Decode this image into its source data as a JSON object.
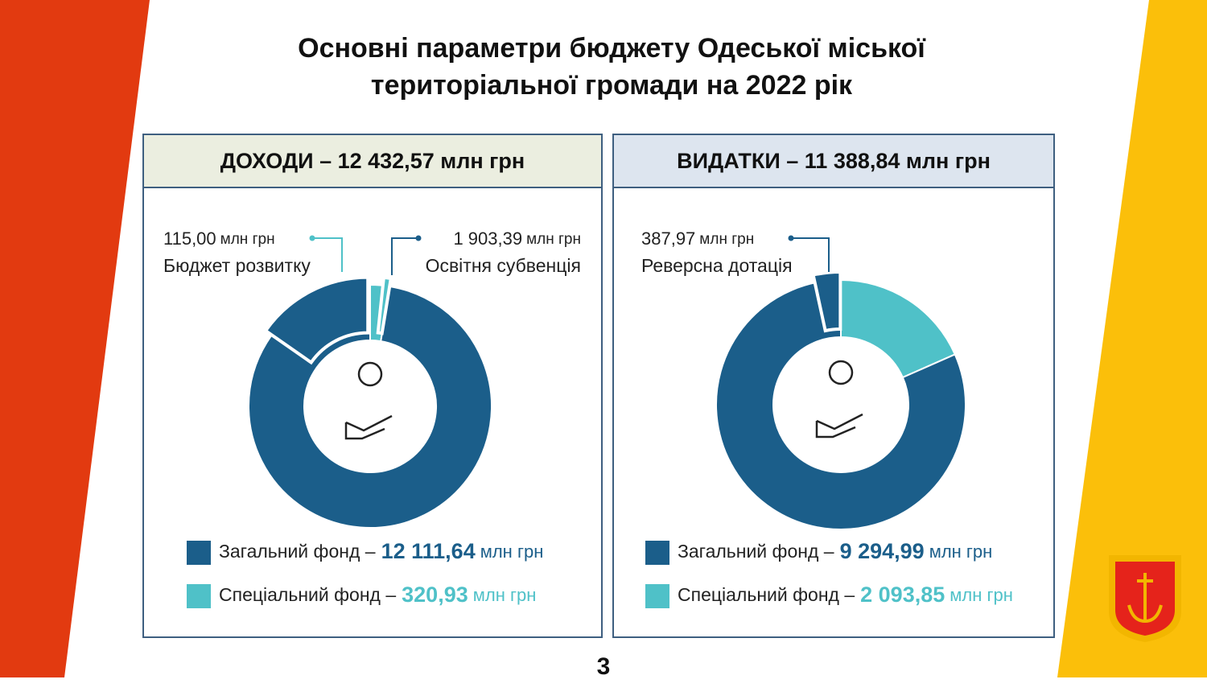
{
  "title_lines": [
    "Основні параметри бюджету Одеської міської",
    "територіальної громади на 2022 рік"
  ],
  "page_number": "3",
  "chart_data": [
    {
      "type": "pie",
      "donut": true,
      "title": "ДОХОДИ – 12 432,57 млн грн",
      "unit": "млн грн",
      "categories": [
        "Загальний фонд –",
        "Спеціальний фонд –"
      ],
      "values": [
        12111.64,
        320.93
      ],
      "value_labels": [
        "12 111,64",
        "320,93"
      ],
      "colors": [
        "#1b5e8a",
        "#4fc1c8"
      ],
      "highlights": [
        [
          {
            "value": 1903.39,
            "label": "1 903,39",
            "text": "Освітня субвенція"
          }
        ],
        [
          {
            "value": 115.0,
            "label": "115,00",
            "text": "Бюджет розвитку"
          }
        ]
      ]
    },
    {
      "type": "pie",
      "donut": true,
      "title": "ВИДАТКИ – 11 388,84 млн грн",
      "unit": "млн грн",
      "categories": [
        "Загальний фонд –",
        "Спеціальний фонд –"
      ],
      "values": [
        9294.99,
        2093.85
      ],
      "value_labels": [
        "9 294,99",
        "2 093,85"
      ],
      "colors": [
        "#1b5e8a",
        "#4fc1c8"
      ],
      "highlights": [
        [
          {
            "value": 387.97,
            "label": "387,97",
            "text": "Реверсна дотація"
          }
        ],
        []
      ]
    }
  ]
}
